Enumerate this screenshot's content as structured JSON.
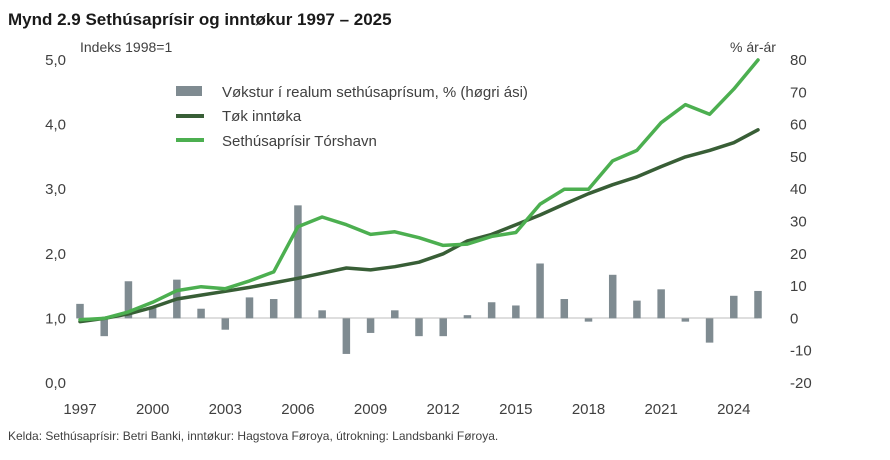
{
  "chart_data": {
    "type": "bar+line",
    "title": "Mynd 2.9 Sethúsaprísir og inntøkur 1997 – 2025",
    "left_axis_label": "Indeks 1998=1",
    "right_axis_label": "% ár-ár",
    "source": "Kelda: Sethúsaprísir: Betri Banki, inntøkur: Hagstova Føroya, útrokning: Landsbanki Føroya.",
    "xlim": [
      1997,
      2025
    ],
    "x_ticks": [
      1997,
      2000,
      2003,
      2006,
      2009,
      2012,
      2015,
      2018,
      2021,
      2024
    ],
    "left_ylim": [
      0,
      5
    ],
    "left_ticks": [
      "0,0",
      "1,0",
      "2,0",
      "3,0",
      "4,0",
      "5,0"
    ],
    "right_ylim": [
      -20,
      80
    ],
    "right_ticks": [
      "-20",
      "-10",
      "0",
      "10",
      "20",
      "30",
      "40",
      "50",
      "60",
      "70",
      "80"
    ],
    "legend": {
      "placement": "top-left",
      "items": [
        {
          "label": "Vøkstur í realum sethúsaprísum, % (høgri ási)",
          "kind": "bar",
          "color": "#7f8b91"
        },
        {
          "label": "Tøk inntøka",
          "kind": "line",
          "color": "#385e36"
        },
        {
          "label": "Sethúsaprísir Tórshavn",
          "kind": "line",
          "color": "#4caf50"
        }
      ]
    },
    "series": [
      {
        "name": "Vøkstur í realum sethúsaprísum, % (høgri ási)",
        "type": "bar",
        "axis": "right",
        "color": "#7f8b91",
        "x": [
          1997,
          1998,
          1999,
          2000,
          2001,
          2002,
          2003,
          2004,
          2005,
          2006,
          2007,
          2008,
          2009,
          2010,
          2011,
          2012,
          2013,
          2014,
          2015,
          2016,
          2017,
          2018,
          2019,
          2020,
          2021,
          2022,
          2023,
          2024,
          2025
        ],
        "values": [
          4.5,
          -5.5,
          11.5,
          3.5,
          12,
          3,
          -3.5,
          6.5,
          6,
          35,
          2.5,
          -11,
          -4.5,
          2.5,
          -5.5,
          -5.5,
          1,
          5,
          4,
          17,
          6,
          -1,
          13.5,
          5.5,
          9,
          -1,
          -7.5,
          7,
          8.5
        ]
      },
      {
        "name": "Tøk inntøka",
        "type": "line",
        "axis": "left",
        "color": "#385e36",
        "x": [
          1997,
          1998,
          1999,
          2000,
          2001,
          2002,
          2003,
          2004,
          2005,
          2006,
          2007,
          2008,
          2009,
          2010,
          2011,
          2012,
          2013,
          2014,
          2015,
          2016,
          2017,
          2018,
          2019,
          2020,
          2021,
          2022,
          2023,
          2024,
          2025
        ],
        "values": [
          0.95,
          1.0,
          1.07,
          1.17,
          1.3,
          1.36,
          1.42,
          1.48,
          1.55,
          1.62,
          1.7,
          1.78,
          1.75,
          1.8,
          1.87,
          2.0,
          2.2,
          2.3,
          2.45,
          2.6,
          2.77,
          2.93,
          3.07,
          3.19,
          3.35,
          3.5,
          3.6,
          3.72,
          3.92
        ]
      },
      {
        "name": "Sethúsaprísir Tórshavn",
        "type": "line",
        "axis": "left",
        "color": "#4caf50",
        "x": [
          1997,
          1998,
          1999,
          2000,
          2001,
          2002,
          2003,
          2004,
          2005,
          2006,
          2007,
          2008,
          2009,
          2010,
          2011,
          2012,
          2013,
          2014,
          2015,
          2016,
          2017,
          2018,
          2019,
          2020,
          2021,
          2022,
          2023,
          2024,
          2025
        ],
        "values": [
          0.98,
          1.0,
          1.1,
          1.25,
          1.43,
          1.49,
          1.46,
          1.58,
          1.72,
          2.42,
          2.57,
          2.45,
          2.3,
          2.34,
          2.25,
          2.13,
          2.15,
          2.27,
          2.33,
          2.77,
          3.0,
          3.0,
          3.44,
          3.6,
          4.03,
          4.31,
          4.16,
          4.55,
          5.0
        ]
      }
    ]
  }
}
